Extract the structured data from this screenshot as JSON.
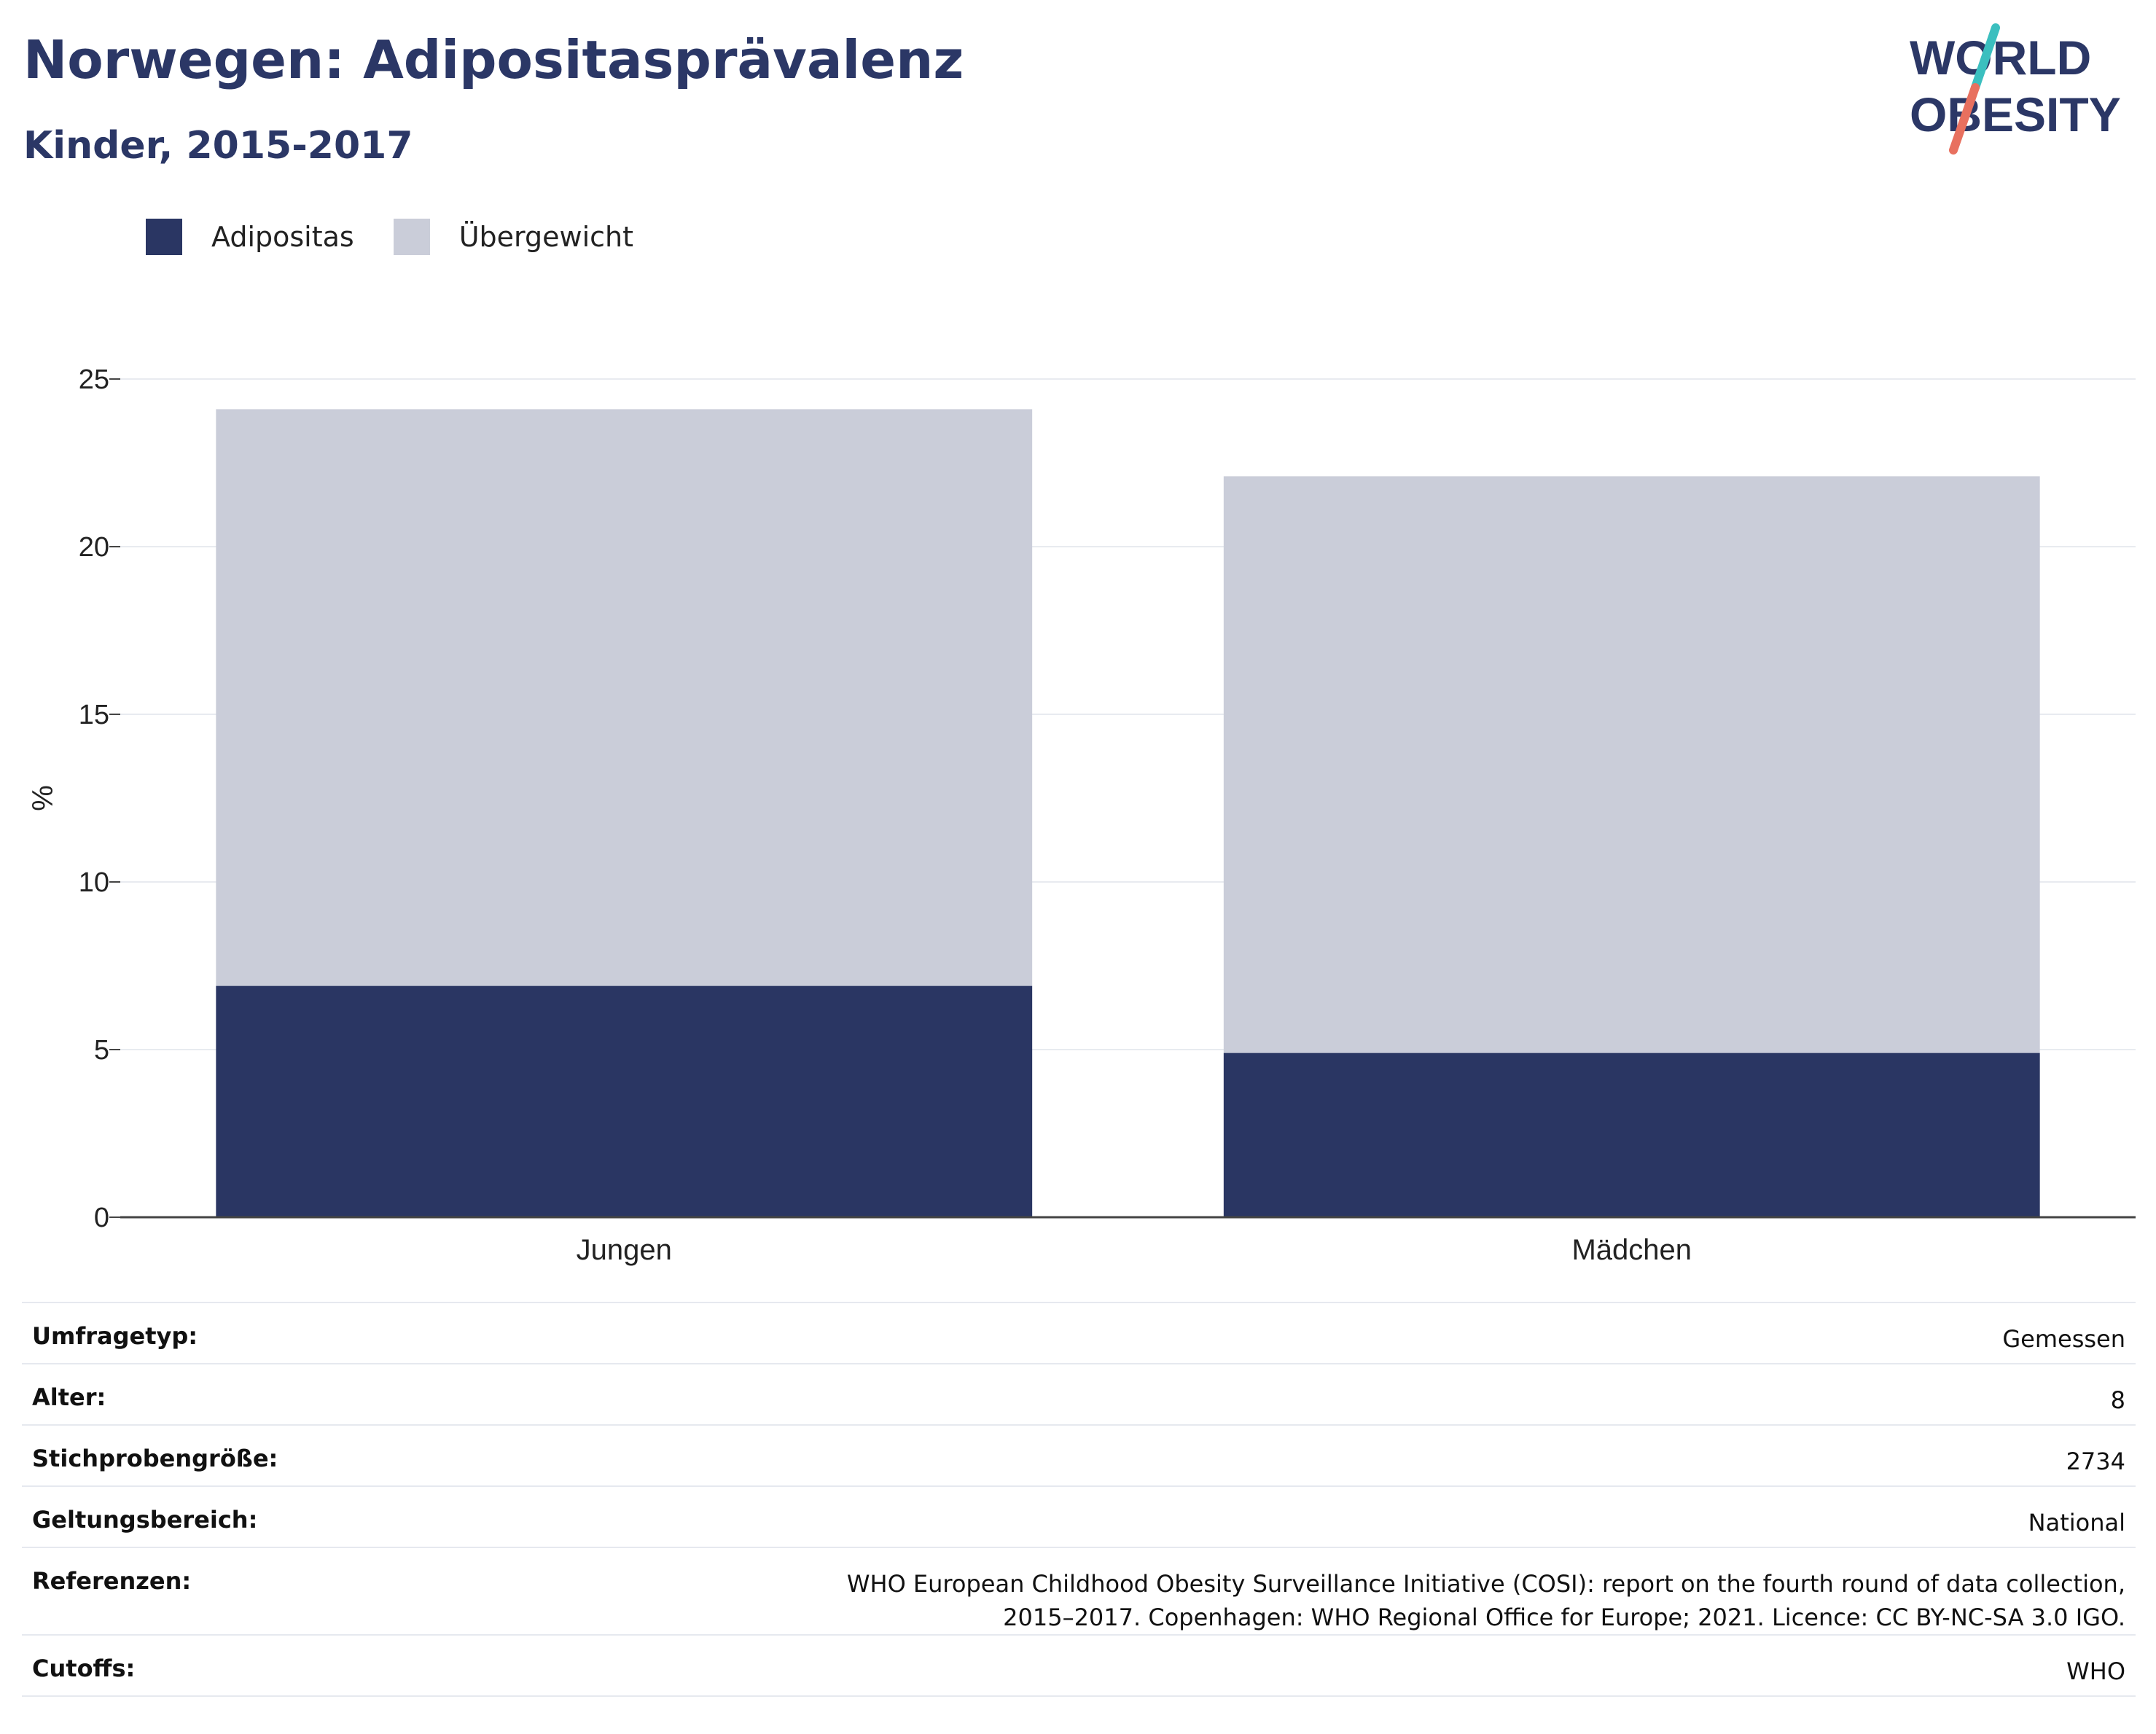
{
  "header": {
    "title": "Norwegen: Adipositasprävalenz",
    "subtitle": "Kinder, 2015-2017"
  },
  "logo": {
    "line1": "WORLD",
    "line2": "OBESITY",
    "colors": {
      "text": "#2b3766",
      "slash_top": "#3bbfbf",
      "slash_bottom": "#e8705f"
    }
  },
  "legend": [
    {
      "label": "Adipositas",
      "color": "#2a3663"
    },
    {
      "label": "Übergewicht",
      "color": "#cacdd9"
    }
  ],
  "chart_data": {
    "type": "bar",
    "stacked": true,
    "categories": [
      "Jungen",
      "Mädchen"
    ],
    "series": [
      {
        "name": "Adipositas",
        "values": [
          6.9,
          4.9
        ],
        "color": "#2a3663"
      },
      {
        "name": "Übergewicht",
        "values": [
          17.2,
          17.2
        ],
        "color": "#cacdd9"
      }
    ],
    "ylabel": "%",
    "ylim": [
      0,
      25
    ],
    "yticks": [
      0,
      5,
      10,
      15,
      20,
      25
    ],
    "grid": true,
    "legend_position": "top-left"
  },
  "info": [
    {
      "key": "Umfragetyp:",
      "value": "Gemessen"
    },
    {
      "key": "Alter:",
      "value": "8"
    },
    {
      "key": "Stichprobengröße:",
      "value": "2734"
    },
    {
      "key": "Geltungsbereich:",
      "value": "National"
    },
    {
      "key": "Referenzen:",
      "value": "WHO European Childhood Obesity Surveillance Initiative (COSI): report on the fourth round of data collection, 2015–2017. Copenhagen: WHO Regional Office for Europe; 2021. Licence: CC BY-NC-SA 3.0 IGO."
    },
    {
      "key": "Cutoffs:",
      "value": "WHO"
    }
  ]
}
